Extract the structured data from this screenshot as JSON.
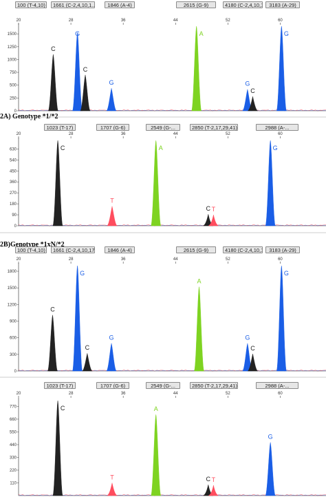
{
  "headers": {
    "h2a": "2A) Genotype *1/*2",
    "h2b": "2B)Genotype *1xN/*2"
  },
  "colors": {
    "C": "#222222",
    "G": "#1a5ee6",
    "A": "#7ed321",
    "T": "#ff4d5e",
    "axis": "#444444"
  },
  "chart_data": [
    {
      "type": "line",
      "panel": "2A-top",
      "tags": [
        "100 (T-4,10)",
        "1661 (C-2,4,10,1...",
        "1846 (A-4)",
        "2615 (G-9)",
        "4180 (C-2,4,10,1...",
        "3183 (A-29)"
      ],
      "xticks": [
        20,
        28,
        36,
        44,
        52,
        60
      ],
      "xlim": [
        20,
        67
      ],
      "yticks": [
        0,
        250,
        500,
        750,
        1000,
        1250,
        1500
      ],
      "ylim": [
        0,
        1650
      ],
      "peaks": [
        {
          "x": 25.3,
          "h": 1100,
          "base": "C",
          "label": "C"
        },
        {
          "x": 29.0,
          "h": 1530,
          "base": "G",
          "label": "G"
        },
        {
          "x": 30.2,
          "h": 700,
          "base": "C",
          "label": "C"
        },
        {
          "x": 34.2,
          "h": 440,
          "base": "G",
          "label": "G"
        },
        {
          "x": 47.2,
          "h": 1650,
          "base": "A",
          "label": "A"
        },
        {
          "x": 55.0,
          "h": 420,
          "base": "G",
          "label": "G"
        },
        {
          "x": 55.8,
          "h": 280,
          "base": "C",
          "label": "C"
        },
        {
          "x": 60.2,
          "h": 1650,
          "base": "G",
          "label": "G"
        }
      ]
    },
    {
      "type": "line",
      "panel": "2A-bottom",
      "tags": [
        "1023 (T-17)",
        "1707 (G-6)",
        "2549 (G-...",
        "2850 (T-2,17,29,41)",
        "2988 (A-..."
      ],
      "xticks": [
        20,
        28,
        36,
        44,
        52,
        60
      ],
      "xlim": [
        20,
        67
      ],
      "yticks": [
        0,
        90,
        180,
        270,
        360,
        450,
        540,
        630
      ],
      "ylim": [
        0,
        700
      ],
      "peaks": [
        {
          "x": 26.0,
          "h": 700,
          "base": "C",
          "label": "C"
        },
        {
          "x": 34.3,
          "h": 160,
          "base": "T",
          "label": "T"
        },
        {
          "x": 41.0,
          "h": 700,
          "base": "A",
          "label": "A"
        },
        {
          "x": 49.0,
          "h": 95,
          "base": "C",
          "label": "C"
        },
        {
          "x": 49.8,
          "h": 90,
          "base": "T",
          "label": "T"
        },
        {
          "x": 58.5,
          "h": 700,
          "base": "G",
          "label": "G"
        }
      ]
    },
    {
      "type": "line",
      "panel": "2B-top",
      "tags": [
        "100 (T-4,10)",
        "1661 (C-2,4,10,17...",
        "1846 (A-4)",
        "2615 (G-9)",
        "4180 (C-2,4,10,1...",
        "3183 (A-29)"
      ],
      "xticks": [
        20,
        28,
        36,
        44,
        52,
        60
      ],
      "xlim": [
        20,
        67
      ],
      "yticks": [
        0,
        300,
        600,
        900,
        1200,
        1500,
        1800
      ],
      "ylim": [
        0,
        1900
      ],
      "peaks": [
        {
          "x": 25.2,
          "h": 1010,
          "base": "C",
          "label": "C"
        },
        {
          "x": 29.0,
          "h": 1900,
          "base": "G",
          "label": "G"
        },
        {
          "x": 30.5,
          "h": 320,
          "base": "C",
          "label": "C"
        },
        {
          "x": 34.2,
          "h": 500,
          "base": "G",
          "label": "G"
        },
        {
          "x": 47.6,
          "h": 1520,
          "base": "A",
          "label": "A"
        },
        {
          "x": 55.0,
          "h": 500,
          "base": "G",
          "label": "G"
        },
        {
          "x": 55.8,
          "h": 310,
          "base": "C",
          "label": "C"
        },
        {
          "x": 60.2,
          "h": 1900,
          "base": "G",
          "label": "G"
        }
      ]
    },
    {
      "type": "line",
      "panel": "2B-bottom",
      "tags": [
        "1023 (T-17)",
        "1707 (G-6)",
        "2549 (G-...",
        "2850 (T-2,17,29,41)",
        "2988 (A-..."
      ],
      "xticks": [
        20,
        28,
        36,
        44,
        52,
        60
      ],
      "xlim": [
        20,
        67
      ],
      "yticks": [
        110,
        220,
        330,
        440,
        550,
        660,
        770
      ],
      "ylim": [
        0,
        820
      ],
      "peaks": [
        {
          "x": 26.0,
          "h": 820,
          "base": "C",
          "label": "C"
        },
        {
          "x": 34.3,
          "h": 110,
          "base": "T",
          "label": "T"
        },
        {
          "x": 41.0,
          "h": 700,
          "base": "A",
          "label": "A"
        },
        {
          "x": 49.0,
          "h": 95,
          "base": "C",
          "label": "C"
        },
        {
          "x": 49.8,
          "h": 90,
          "base": "T",
          "label": "T"
        },
        {
          "x": 58.5,
          "h": 460,
          "base": "G",
          "label": "G"
        }
      ]
    }
  ]
}
